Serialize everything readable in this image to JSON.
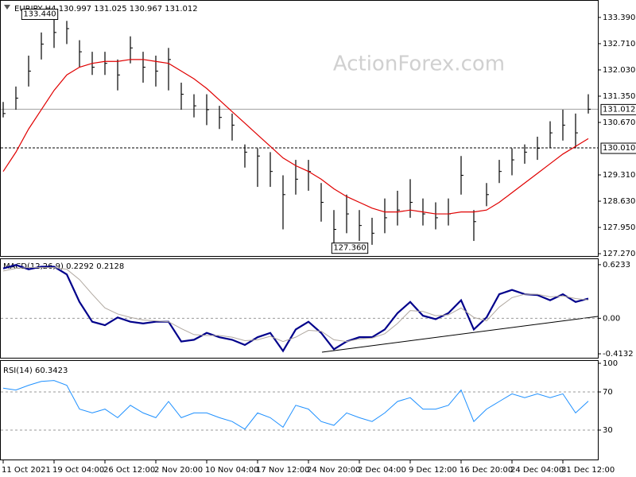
{
  "watermark": "ActionForex.com",
  "chart_data": [
    {
      "type": "ohlc",
      "title": "EURJPY,H4 130.997 131.025 130.967 131.012",
      "high": [
        131.2,
        131.6,
        132.4,
        133.0,
        133.44,
        133.3,
        132.8,
        132.5,
        132.5,
        132.3,
        132.9,
        132.5,
        132.4,
        132.6,
        131.7,
        131.4,
        131.4,
        131.1,
        130.9,
        130.1,
        130.0,
        129.9,
        129.3,
        129.7,
        129.7,
        129.1,
        128.4,
        128.8,
        128.4,
        128.2,
        128.7,
        128.9,
        129.2,
        128.7,
        128.6,
        128.7,
        129.8,
        128.4,
        129.1,
        129.7,
        130.0,
        130.1,
        130.3,
        130.7,
        131.0,
        130.9,
        131.4
      ],
      "low": [
        130.8,
        131.0,
        131.6,
        132.3,
        132.6,
        132.7,
        132.1,
        131.9,
        131.9,
        131.5,
        132.2,
        131.7,
        131.6,
        131.5,
        131.0,
        130.8,
        130.6,
        130.5,
        130.2,
        129.5,
        129.0,
        129.0,
        127.9,
        128.8,
        128.9,
        128.1,
        127.36,
        127.8,
        127.6,
        127.5,
        127.8,
        128.0,
        128.2,
        128.0,
        127.9,
        128.0,
        128.8,
        127.6,
        128.5,
        129.1,
        129.3,
        129.6,
        129.7,
        130.0,
        130.2,
        130.0,
        130.9
      ],
      "close": [
        130.9,
        131.3,
        132.0,
        132.7,
        133.0,
        133.1,
        132.5,
        132.1,
        132.2,
        131.9,
        132.6,
        132.1,
        132.0,
        132.3,
        131.4,
        131.1,
        131.0,
        130.8,
        130.6,
        129.9,
        129.8,
        129.4,
        128.8,
        129.2,
        129.4,
        128.6,
        127.9,
        128.3,
        128.0,
        127.8,
        128.2,
        128.4,
        128.6,
        128.3,
        128.2,
        128.3,
        129.3,
        128.1,
        128.8,
        129.4,
        129.7,
        129.9,
        130.0,
        130.4,
        130.6,
        130.4,
        131.012
      ],
      "color": "#000000",
      "ma": {
        "color": "#e00000",
        "values": [
          129.4,
          129.9,
          130.5,
          131.0,
          131.5,
          131.9,
          132.1,
          132.2,
          132.25,
          132.25,
          132.3,
          132.3,
          132.25,
          132.2,
          132.0,
          131.8,
          131.55,
          131.25,
          130.95,
          130.65,
          130.35,
          130.05,
          129.75,
          129.55,
          129.4,
          129.2,
          128.95,
          128.75,
          128.6,
          128.45,
          128.35,
          128.35,
          128.4,
          128.35,
          128.3,
          128.3,
          128.35,
          128.35,
          128.4,
          128.6,
          128.85,
          129.1,
          129.35,
          129.6,
          129.85,
          130.05,
          130.25
        ]
      },
      "ylim": [
        127.21,
        133.8
      ],
      "yticks": [
        {
          "value": 133.39,
          "label": "133.390"
        },
        {
          "value": 132.71,
          "label": "132.710"
        },
        {
          "value": 132.03,
          "label": "132.030"
        },
        {
          "value": 131.35,
          "label": "131.350"
        },
        {
          "value": 130.67,
          "label": "130.670"
        },
        {
          "value": 129.31,
          "label": "129.310"
        },
        {
          "value": 128.63,
          "label": "128.630"
        },
        {
          "value": 127.95,
          "label": "127.950"
        },
        {
          "value": 127.27,
          "label": "127.270"
        }
      ],
      "price_lines": [
        {
          "value": 131.012,
          "label": "131.012",
          "style": "solid"
        },
        {
          "value": 130.01,
          "label": "130.010",
          "style": "dashed"
        }
      ],
      "annotations": [
        {
          "index": 4,
          "value": 133.44,
          "label": "133.440"
        },
        {
          "index": 26,
          "value": 127.36,
          "label": "127.360"
        }
      ]
    },
    {
      "type": "line",
      "title": "MACD(12,26,9) 0.2292 0.2128",
      "series": [
        {
          "color": "#00008b",
          "width": 2.2,
          "values": [
            0.58,
            0.62,
            0.57,
            0.6,
            0.6,
            0.51,
            0.19,
            -0.04,
            -0.08,
            0.01,
            -0.04,
            -0.06,
            -0.04,
            -0.04,
            -0.27,
            -0.25,
            -0.17,
            -0.22,
            -0.25,
            -0.31,
            -0.22,
            -0.17,
            -0.38,
            -0.13,
            -0.04,
            -0.17,
            -0.36,
            -0.27,
            -0.22,
            -0.22,
            -0.13,
            0.06,
            0.19,
            0.03,
            -0.01,
            0.06,
            0.21,
            -0.13,
            0.01,
            0.28,
            0.33,
            0.28,
            0.27,
            0.21,
            0.28,
            0.19,
            0.2292
          ]
        },
        {
          "color": "#b0a8a0",
          "width": 1,
          "values": [
            0.55,
            0.58,
            0.59,
            0.59,
            0.59,
            0.57,
            0.45,
            0.28,
            0.12,
            0.05,
            0.01,
            -0.02,
            -0.03,
            -0.04,
            -0.12,
            -0.19,
            -0.2,
            -0.2,
            -0.22,
            -0.26,
            -0.25,
            -0.21,
            -0.27,
            -0.22,
            -0.14,
            -0.15,
            -0.25,
            -0.27,
            -0.24,
            -0.23,
            -0.18,
            -0.06,
            0.09,
            0.08,
            0.03,
            0.04,
            0.12,
            0.01,
            -0.03,
            0.13,
            0.24,
            0.28,
            0.28,
            0.25,
            0.26,
            0.23,
            0.2128
          ]
        }
      ],
      "ylim": [
        -0.459,
        0.6875
      ],
      "yticks": [
        0.6233,
        {
          "value": 0,
          "label": "0.00"
        },
        -0.4132
      ],
      "levels": [
        0
      ]
    },
    {
      "type": "line",
      "title": "RSI(14) 60.3423",
      "series": [
        {
          "color": "#1e90ff",
          "width": 1,
          "values": [
            74,
            72,
            77,
            81,
            82,
            77,
            52,
            48,
            52,
            43,
            56,
            48,
            43,
            60,
            43,
            48,
            48,
            43,
            39,
            31,
            48,
            43,
            33,
            56,
            52,
            39,
            35,
            48,
            43,
            39,
            48,
            60,
            64,
            52,
            52,
            56,
            72,
            39,
            52,
            60,
            68,
            64,
            68,
            64,
            68,
            48,
            60.3423
          ]
        }
      ],
      "ylim": [
        0,
        100
      ],
      "yticks": [
        100,
        70,
        30
      ],
      "levels": [
        70,
        30
      ],
      "categories": [
        "11 Oct 2021",
        null,
        null,
        null,
        "19 Oct 04:00",
        null,
        null,
        null,
        "26 Oct 12:00",
        null,
        null,
        null,
        "2 Nov 20:00",
        null,
        null,
        null,
        "10 Nov 04:00",
        null,
        null,
        null,
        "17 Nov 12:00",
        null,
        null,
        null,
        "24 Nov 20:00",
        null,
        null,
        null,
        "2 Dec 04:00",
        null,
        null,
        null,
        "9 Dec 12:00",
        null,
        null,
        null,
        "16 Dec 20:00",
        null,
        null,
        null,
        "24 Dec 04:00",
        null,
        null,
        null,
        "31 Dec 12:00",
        null,
        null
      ]
    }
  ]
}
